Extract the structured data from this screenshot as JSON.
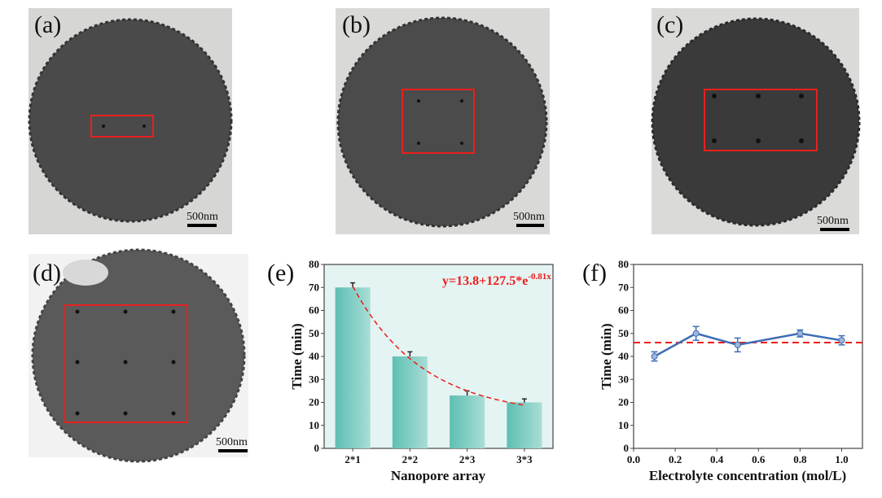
{
  "panels": {
    "a": {
      "label": "(a)",
      "scale_bar": "500nm"
    },
    "b": {
      "label": "(b)",
      "scale_bar": "500nm"
    },
    "c": {
      "label": "(c)",
      "scale_bar": "500nm"
    },
    "d": {
      "label": "(d)",
      "scale_bar": "500nm"
    },
    "e": {
      "label": "(e)"
    },
    "f": {
      "label": "(f)"
    }
  },
  "colors": {
    "highlight": "#e8201e",
    "bar": "#6cc4b8",
    "plot_bg": "#e4f4f2",
    "line": "#3e6db5",
    "fit": "#ee1c1c"
  },
  "chart_data": [
    {
      "type": "bar",
      "title": "",
      "categories": [
        "2*1",
        "2*2",
        "2*3",
        "3*3"
      ],
      "values": [
        70,
        40,
        23,
        20
      ],
      "errors": [
        2,
        2,
        2,
        1.5
      ],
      "xlabel": "Nanopore array",
      "ylabel": "Time (min)",
      "ylim": [
        0,
        80
      ],
      "yticks": [
        "0",
        "10",
        "20",
        "30",
        "40",
        "50",
        "60",
        "70",
        "80"
      ],
      "fit_equation": {
        "base": "y=13.8+127.5*e",
        "exponent": "-0.81x"
      },
      "fit": {
        "a": 13.8,
        "b": 127.5,
        "k": -0.81
      }
    },
    {
      "type": "line",
      "title": "",
      "x": [
        0.1,
        0.3,
        0.5,
        0.8,
        1.0
      ],
      "y": [
        40,
        50,
        45,
        50,
        47
      ],
      "errors": [
        2,
        3,
        3,
        1.5,
        2
      ],
      "reference_line": 46,
      "xlabel": "Electrolyte concentration (mol/L)",
      "ylabel": "Time (min)",
      "xlim": [
        0,
        1.1
      ],
      "ylim": [
        0,
        80
      ],
      "xticks": [
        "0.0",
        "0.2",
        "0.4",
        "0.6",
        "0.8",
        "1.0"
      ],
      "yticks": [
        "0",
        "10",
        "20",
        "30",
        "40",
        "50",
        "60",
        "70",
        "80"
      ]
    }
  ]
}
